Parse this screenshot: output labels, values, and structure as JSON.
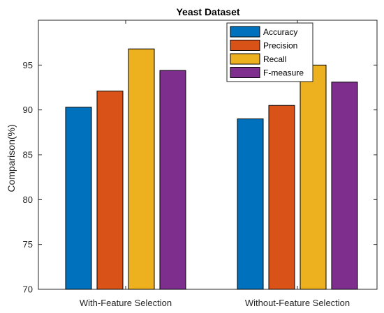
{
  "chart_data": {
    "type": "bar",
    "title": "Yeast Dataset",
    "xlabel": "",
    "ylabel": "Comparison(%)",
    "ylim": [
      70,
      100
    ],
    "yticks": [
      70,
      75,
      80,
      85,
      90,
      95
    ],
    "categories": [
      "With-Feature Selection",
      "Without-Feature Selection"
    ],
    "series": [
      {
        "name": "Accuracy",
        "color": "#0072BD",
        "values": [
          90.3,
          89.0
        ]
      },
      {
        "name": "Precision",
        "color": "#D95319",
        "values": [
          92.1,
          90.5
        ]
      },
      {
        "name": "Recall",
        "color": "#EDB120",
        "values": [
          96.8,
          95.0
        ]
      },
      {
        "name": "F-measure",
        "color": "#7E2F8E",
        "values": [
          94.4,
          93.1
        ]
      }
    ],
    "legend_position": "top-right",
    "grid": false
  }
}
